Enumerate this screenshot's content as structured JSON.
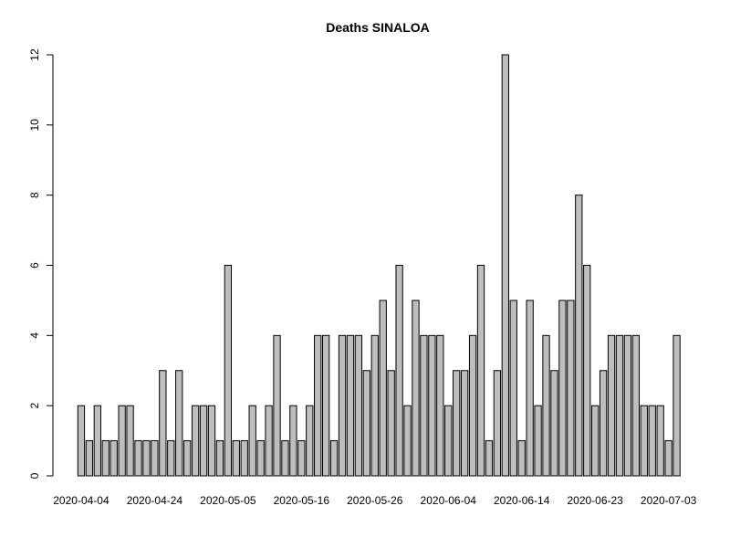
{
  "chart_data": {
    "type": "bar",
    "title": "Deaths SINALOA",
    "xlabel": "",
    "ylabel": "",
    "ylim": [
      0,
      12
    ],
    "y_ticks": [
      0,
      2,
      4,
      6,
      8,
      10,
      12
    ],
    "x_tick_labels": [
      "2020-04-04",
      "2020-04-24",
      "2020-05-05",
      "2020-05-16",
      "2020-05-26",
      "2020-06-04",
      "2020-06-14",
      "2020-06-23",
      "2020-07-03"
    ],
    "x_tick_bar_index": [
      0,
      9,
      18,
      27,
      36,
      45,
      54,
      63,
      72
    ],
    "bar_color": "#bebebe",
    "values": [
      2,
      1,
      2,
      1,
      1,
      2,
      2,
      1,
      1,
      1,
      3,
      1,
      3,
      1,
      2,
      2,
      2,
      1,
      6,
      1,
      1,
      2,
      1,
      2,
      4,
      1,
      2,
      1,
      2,
      4,
      4,
      1,
      4,
      4,
      4,
      3,
      4,
      5,
      3,
      6,
      2,
      5,
      4,
      4,
      4,
      2,
      3,
      3,
      4,
      6,
      1,
      3,
      12,
      5,
      1,
      5,
      2,
      4,
      3,
      5,
      5,
      8,
      6,
      2,
      3,
      4,
      4,
      4,
      4,
      2,
      2,
      2,
      1,
      4
    ],
    "grid": false,
    "legend": "none"
  }
}
